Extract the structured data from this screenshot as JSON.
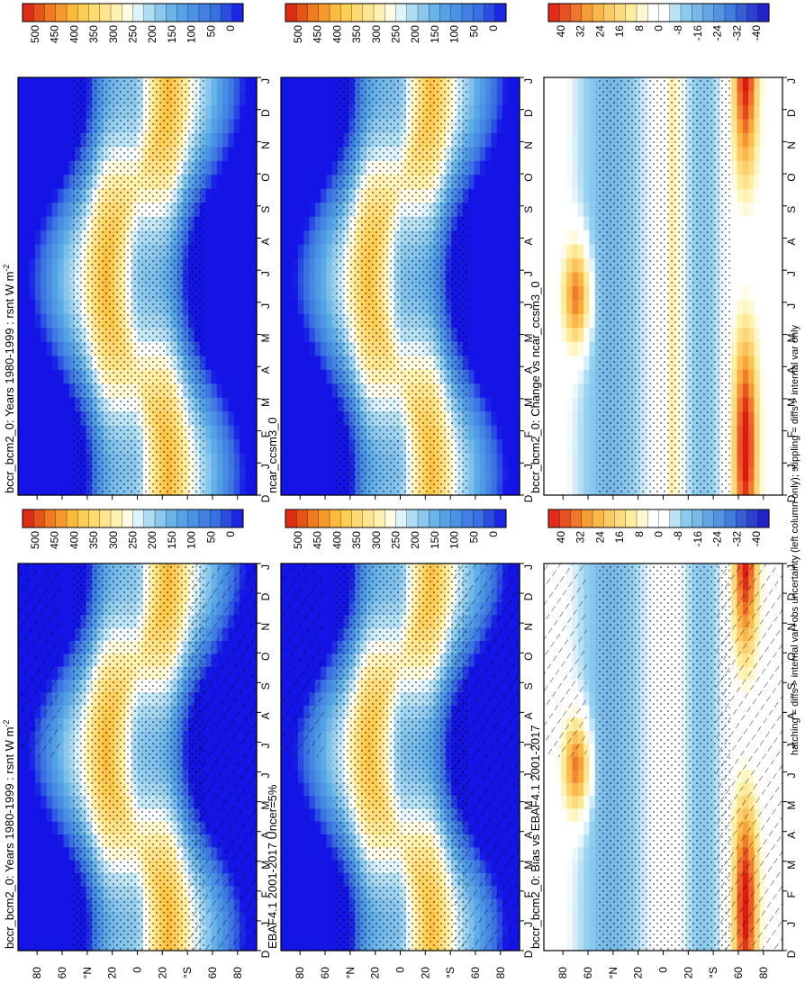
{
  "figure": {
    "footnote": "hatching = diffs > internal var+obs uncertainty (left column only); stippling = diffs > internal var only"
  },
  "colorbars": {
    "absolute": [
      "500",
      "450",
      "400",
      "350",
      "300",
      "250",
      "200",
      "150",
      "100",
      "50",
      "0"
    ],
    "difference": [
      "40",
      "32",
      "24",
      "16",
      "8",
      "0",
      "-8",
      "-16",
      "-24",
      "-32",
      "-40"
    ]
  },
  "chart_data": [
    {
      "type": "heatmap",
      "title": "bccr_bcm2_0: Years 1980-1999 : rsnt W m",
      "title_superscript": "-2",
      "x_ticks": [
        "D",
        "J",
        "F",
        "M",
        "A",
        "M",
        "J",
        "J",
        "A",
        "S",
        "O",
        "N",
        "D",
        "J"
      ],
      "y_ticks": [
        "80",
        "60",
        "°N",
        "20",
        "0",
        "20",
        "°S",
        "60",
        "80"
      ],
      "clim": [
        0,
        500
      ],
      "colorbar": "absolute",
      "hatching": true,
      "stippling": true
    },
    {
      "type": "heatmap",
      "title": "EBAF4.1 2001-2017 Uncer=5%",
      "x_ticks": [
        "D",
        "J",
        "F",
        "M",
        "A",
        "M",
        "J",
        "J",
        "A",
        "S",
        "O",
        "N",
        "D",
        "J"
      ],
      "y_ticks": [
        "80",
        "60",
        "°N",
        "20",
        "0",
        "20",
        "°S",
        "60",
        "80"
      ],
      "clim": [
        0,
        500
      ],
      "colorbar": "absolute",
      "hatching": true,
      "stippling": true
    },
    {
      "type": "heatmap",
      "title": "bccr_bcm2_0: Bias vs EBAF4.1 2001-2017",
      "x_ticks": [
        "D",
        "J",
        "F",
        "M",
        "A",
        "M",
        "J",
        "J",
        "A",
        "S",
        "O",
        "N",
        "D",
        "J"
      ],
      "y_ticks": [
        "80",
        "60",
        "°N",
        "20",
        "0",
        "20",
        "°S",
        "60",
        "80"
      ],
      "clim": [
        -40,
        40
      ],
      "colorbar": "difference",
      "hatching": true,
      "stippling": true
    },
    {
      "type": "heatmap",
      "title": "bccr_bcm2_0: Years 1980-1999 : rsnt W m",
      "title_superscript": "-2",
      "x_ticks": [
        "D",
        "J",
        "F",
        "M",
        "A",
        "M",
        "J",
        "J",
        "A",
        "S",
        "O",
        "N",
        "D",
        "J"
      ],
      "y_ticks": [
        "80",
        "60",
        "°N",
        "20",
        "0",
        "20",
        "°S",
        "60",
        "80"
      ],
      "clim": [
        0,
        500
      ],
      "colorbar": "absolute",
      "hatching": false,
      "stippling": true
    },
    {
      "type": "heatmap",
      "title": "ncar_ccsm3_0",
      "x_ticks": [
        "D",
        "J",
        "F",
        "M",
        "A",
        "M",
        "J",
        "J",
        "A",
        "S",
        "O",
        "N",
        "D",
        "J"
      ],
      "y_ticks": [
        "80",
        "60",
        "°N",
        "20",
        "0",
        "20",
        "°S",
        "60",
        "80"
      ],
      "clim": [
        0,
        500
      ],
      "colorbar": "absolute",
      "hatching": false,
      "stippling": true
    },
    {
      "type": "heatmap",
      "title": "bccr_bcm2_0: Change vs ncar_ccsm3_0",
      "x_ticks": [
        "D",
        "J",
        "F",
        "M",
        "A",
        "M",
        "J",
        "J",
        "A",
        "S",
        "O",
        "N",
        "D",
        "J"
      ],
      "y_ticks": [
        "80",
        "60",
        "°N",
        "20",
        "0",
        "20",
        "°S",
        "60",
        "80"
      ],
      "clim": [
        -40,
        40
      ],
      "colorbar": "difference",
      "hatching": false,
      "stippling": true
    }
  ]
}
